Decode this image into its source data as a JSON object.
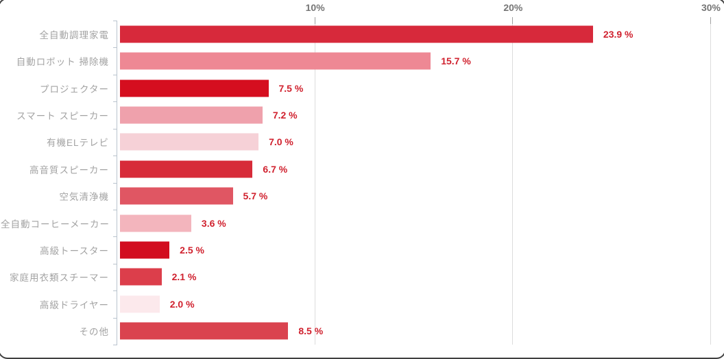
{
  "chart_data": {
    "type": "bar",
    "orientation": "horizontal",
    "title": "",
    "xlabel": "",
    "ylabel": "",
    "xlim": [
      0,
      30
    ],
    "grid": true,
    "axis_position": "top",
    "x_ticks": [
      {
        "value": 10,
        "label": "10%"
      },
      {
        "value": 20,
        "label": "20%"
      },
      {
        "value": 30,
        "label": "30%"
      }
    ],
    "series": [
      {
        "category": "全自動調理家電",
        "value": 23.9,
        "label": "23.9 %",
        "color": "#d7293b"
      },
      {
        "category": "自動ロボット 掃除機",
        "value": 15.7,
        "label": "15.7 %",
        "color": "#ee8894"
      },
      {
        "category": "プロジェクター",
        "value": 7.5,
        "label": "7.5 %",
        "color": "#d50e1f"
      },
      {
        "category": "スマート スピーカー",
        "value": 7.2,
        "label": "7.2 %",
        "color": "#efa1ac"
      },
      {
        "category": "有機ELテレビ",
        "value": 7.0,
        "label": "7.0 %",
        "color": "#f6d1d7"
      },
      {
        "category": "高音質スピーカー",
        "value": 6.7,
        "label": "6.7 %",
        "color": "#d72b39"
      },
      {
        "category": "空気清浄機",
        "value": 5.7,
        "label": "5.7 %",
        "color": "#e05663"
      },
      {
        "category": "全自動コーヒーメーカー",
        "value": 3.6,
        "label": "3.6 %",
        "color": "#f3b5bd"
      },
      {
        "category": "高級トースター",
        "value": 2.5,
        "label": "2.5 %",
        "color": "#d20d1f"
      },
      {
        "category": "家庭用衣類スチーマー",
        "value": 2.1,
        "label": "2.1 %",
        "color": "#dc3e4b"
      },
      {
        "category": "高級ドライヤー",
        "value": 2.0,
        "label": "2.0 %",
        "color": "#fce9ec"
      },
      {
        "category": "その他",
        "value": 8.5,
        "label": "8.5 %",
        "color": "#da434f"
      }
    ]
  },
  "styles": {
    "value_label_color": "#d0212e",
    "category_label_color": "#a3a3a3",
    "axis_label_color": "#757575",
    "axis_line_color": "#b9c3cd",
    "gridline_color": "#dcdcdc",
    "top_tick_color": "#9e9e9e",
    "card_border_color": "#3f3f3f",
    "background": "#ffffff"
  }
}
